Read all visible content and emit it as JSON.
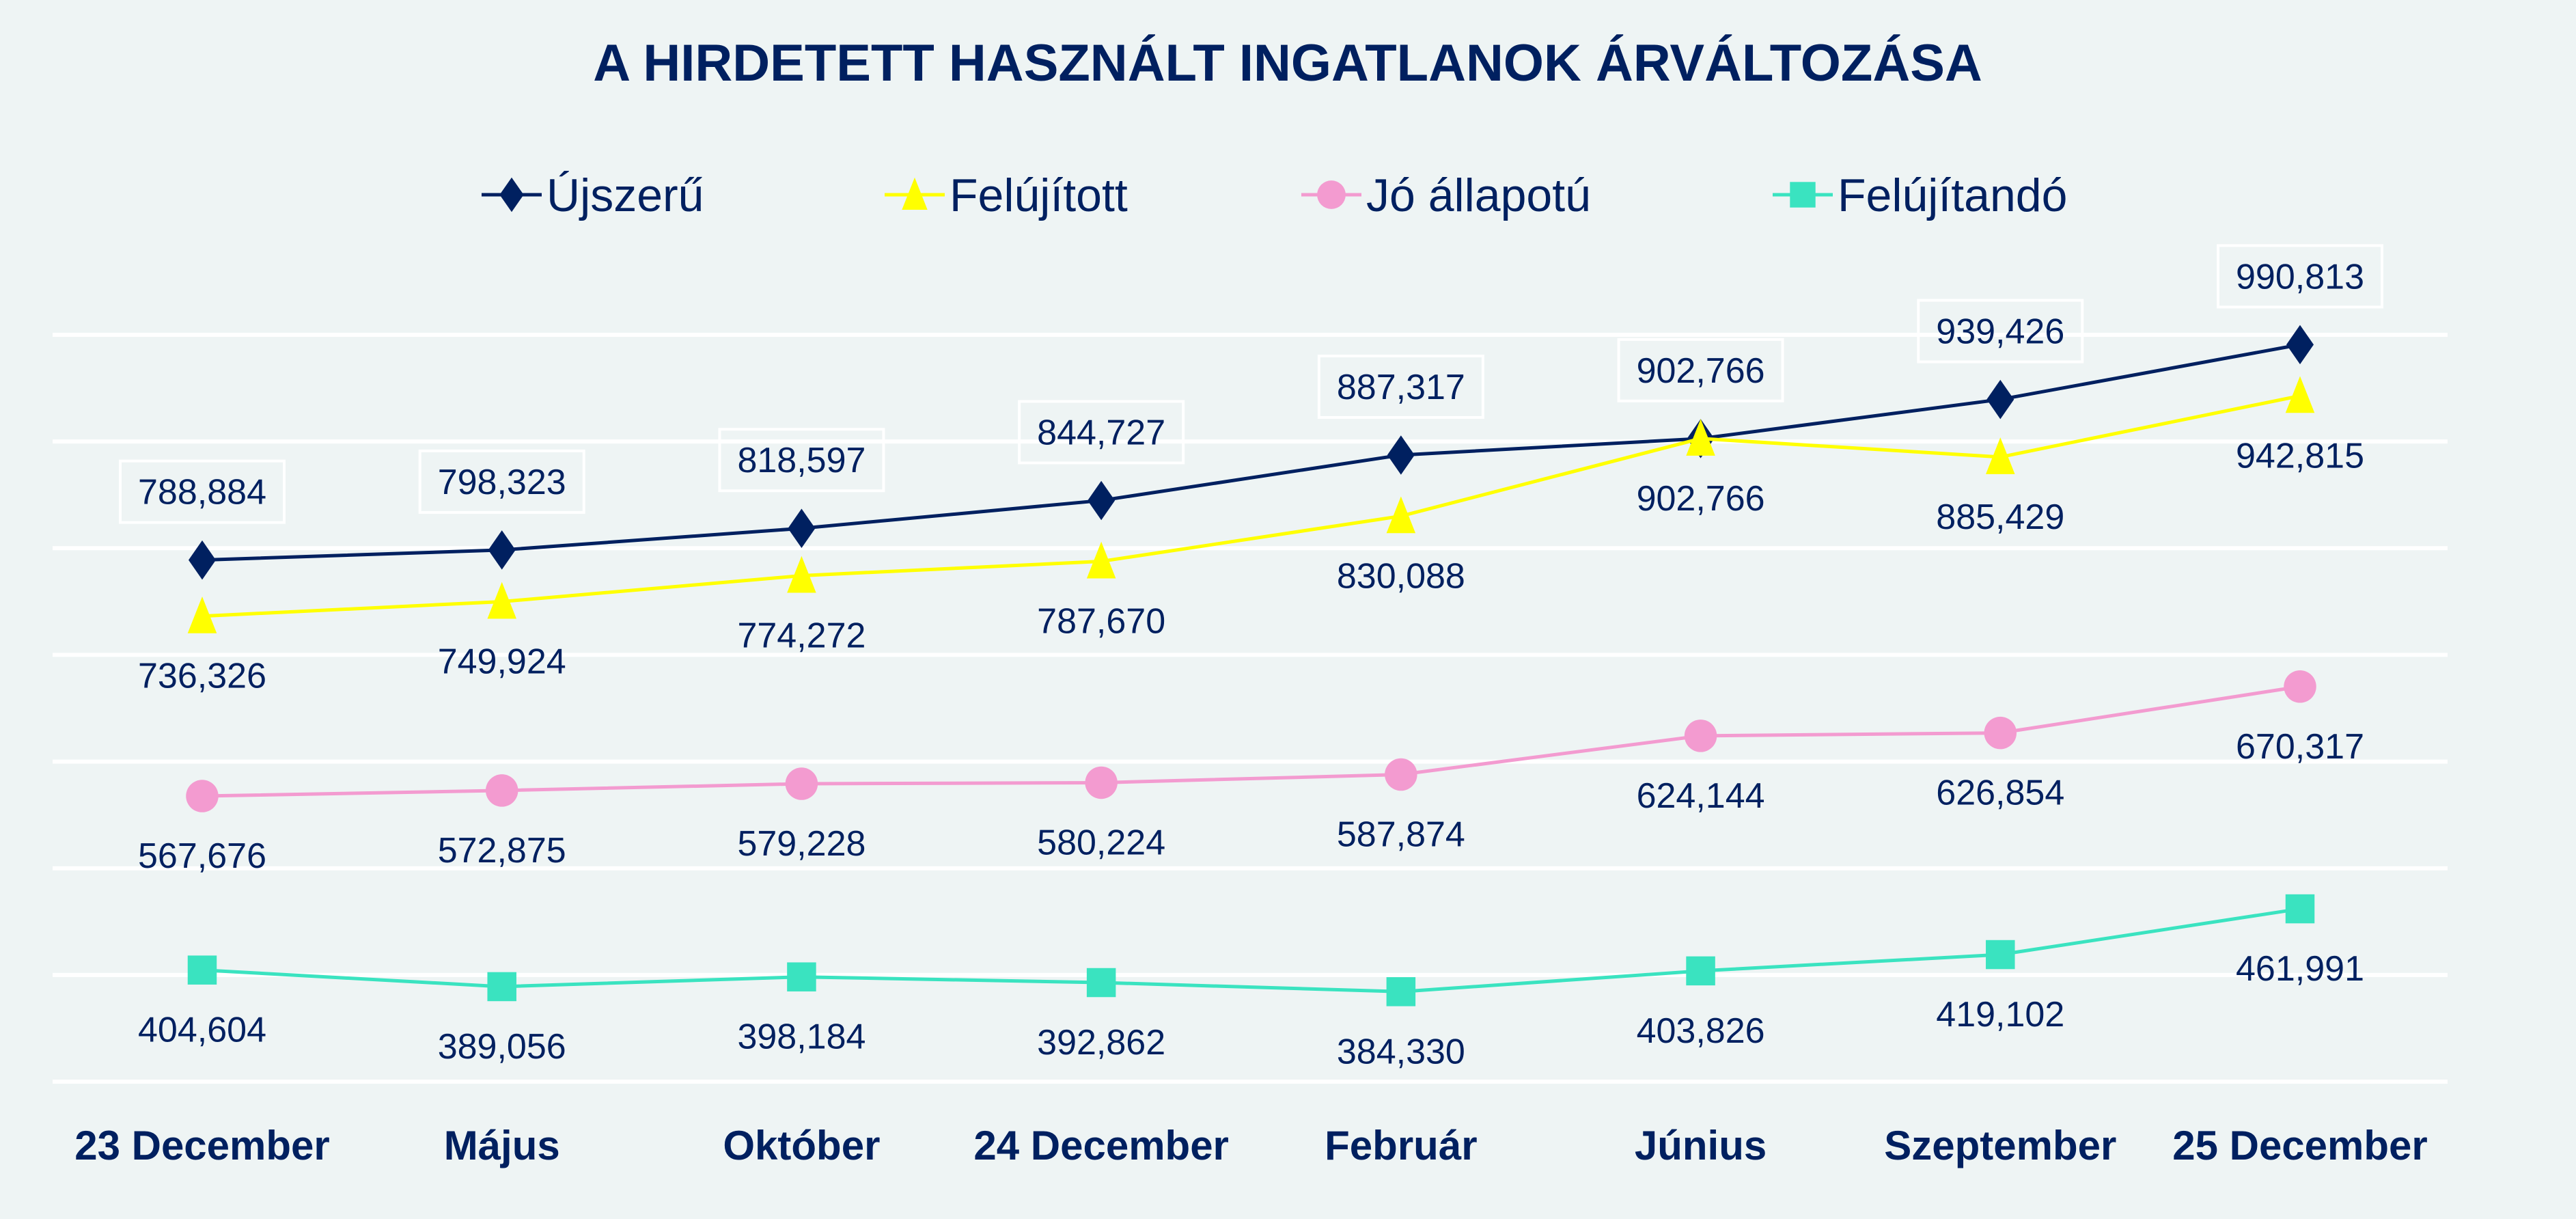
{
  "chart_data": {
    "type": "line",
    "title": "A HIRDETETT HASZNÁLT INGATLANOK ÁRVÁLTOZÁSA",
    "xlabel": "",
    "ylabel": "",
    "ylim": [
      300000,
      1000000
    ],
    "y_grid_step": 100000,
    "grid": true,
    "legend_position": "top",
    "categories": [
      "23 December",
      "Május",
      "Október",
      "24 December",
      "Február",
      "Június",
      "Szeptember",
      "25 December"
    ],
    "series": [
      {
        "name": "Újszerű",
        "color": "#002060",
        "marker": "diamond",
        "label_position": "above-boxed",
        "values": [
          788884,
          798323,
          818597,
          844727,
          887317,
          902766,
          939426,
          990813
        ],
        "labels": [
          "788,884",
          "798,323",
          "818,597",
          "844,727",
          "887,317",
          "902,766",
          "939,426",
          "990,813"
        ]
      },
      {
        "name": "Felújított",
        "color": "#ffff00",
        "marker": "triangle",
        "label_position": "below",
        "values": [
          736326,
          749924,
          774272,
          787670,
          830088,
          902766,
          885429,
          942815
        ],
        "labels": [
          "736,326",
          "749,924",
          "774,272",
          "787,670",
          "830,088",
          "902,766",
          "885,429",
          "942,815"
        ]
      },
      {
        "name": "Jó állapotú",
        "color": "#f39bd0",
        "marker": "circle",
        "label_position": "below",
        "values": [
          567676,
          572875,
          579228,
          580224,
          587874,
          624144,
          626854,
          670317
        ],
        "labels": [
          "567,676",
          "572,875",
          "579,228",
          "580,224",
          "587,874",
          "624,144",
          "626,854",
          "670,317"
        ]
      },
      {
        "name": "Felújítandó",
        "color": "#3ae3c0",
        "marker": "square",
        "label_position": "below",
        "values": [
          404604,
          389056,
          398184,
          392862,
          384330,
          403826,
          419102,
          461991
        ],
        "labels": [
          "404,604",
          "389,056",
          "398,184",
          "392,862",
          "384,330",
          "403,826",
          "419,102",
          "461,991"
        ]
      }
    ]
  }
}
